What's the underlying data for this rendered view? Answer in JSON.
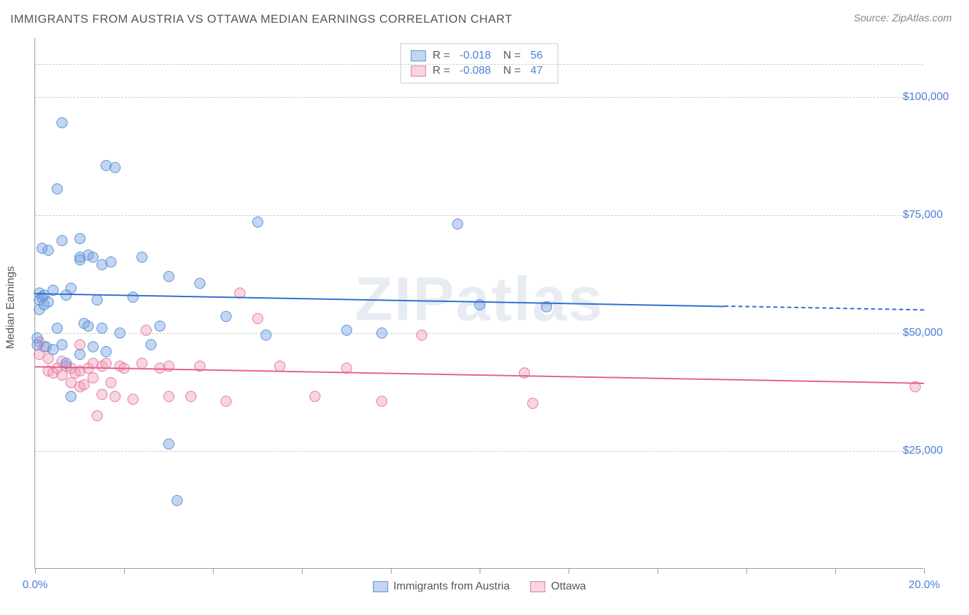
{
  "title": "IMMIGRANTS FROM AUSTRIA VS OTTAWA MEDIAN EARNINGS CORRELATION CHART",
  "source": "Source: ZipAtlas.com",
  "watermark": "ZIPatlas",
  "ylabel": "Median Earnings",
  "chart": {
    "type": "scatter",
    "background_color": "#ffffff",
    "grid_color": "#cccccc",
    "axis_color": "#999999",
    "label_color": "#4a7fd8",
    "title_fontsize": 17,
    "label_fontsize": 16,
    "point_radius": 8,
    "xlim": [
      0,
      20
    ],
    "ylim": [
      0,
      112500
    ],
    "xticks": [
      0,
      2,
      4,
      6,
      8,
      10,
      12,
      14,
      16,
      18,
      20
    ],
    "xtick_labels_visible": {
      "0": "0.0%",
      "20": "20.0%"
    },
    "yticks": [
      25000,
      50000,
      75000,
      100000
    ],
    "ytick_labels": [
      "$25,000",
      "$50,000",
      "$75,000",
      "$100,000"
    ],
    "ygrid_extra_top": 107000
  },
  "series": [
    {
      "name": "Immigrants from Austria",
      "fill_color": "rgba(120,165,225,0.45)",
      "stroke_color": "#5d8fd6",
      "trend_color": "#2d6cd4",
      "R": "-0.018",
      "N": "56",
      "trend": {
        "x1": 0,
        "y1": 58500,
        "x2": 15.5,
        "y2": 55800,
        "dash_x2": 20,
        "dash_y2": 55000
      },
      "points": [
        [
          0.05,
          47500
        ],
        [
          0.05,
          49000
        ],
        [
          0.1,
          57000
        ],
        [
          0.1,
          58500
        ],
        [
          0.1,
          55000
        ],
        [
          0.15,
          68000
        ],
        [
          0.15,
          57500
        ],
        [
          0.2,
          58000
        ],
        [
          0.2,
          56000
        ],
        [
          0.25,
          47000
        ],
        [
          0.3,
          67500
        ],
        [
          0.3,
          56500
        ],
        [
          0.4,
          59000
        ],
        [
          0.4,
          46500
        ],
        [
          0.5,
          80500
        ],
        [
          0.5,
          51000
        ],
        [
          0.6,
          94500
        ],
        [
          0.6,
          69500
        ],
        [
          0.6,
          47500
        ],
        [
          0.7,
          58000
        ],
        [
          0.7,
          43500
        ],
        [
          0.8,
          59500
        ],
        [
          0.8,
          36500
        ],
        [
          1.0,
          70000
        ],
        [
          1.0,
          66000
        ],
        [
          1.0,
          65500
        ],
        [
          1.0,
          45500
        ],
        [
          1.1,
          52000
        ],
        [
          1.2,
          66500
        ],
        [
          1.2,
          51500
        ],
        [
          1.3,
          66000
        ],
        [
          1.3,
          47000
        ],
        [
          1.4,
          57000
        ],
        [
          1.5,
          64500
        ],
        [
          1.5,
          51000
        ],
        [
          1.6,
          85500
        ],
        [
          1.6,
          46000
        ],
        [
          1.7,
          65000
        ],
        [
          1.8,
          85000
        ],
        [
          1.9,
          50000
        ],
        [
          2.2,
          57500
        ],
        [
          2.4,
          66000
        ],
        [
          2.6,
          47500
        ],
        [
          2.8,
          51500
        ],
        [
          3.0,
          62000
        ],
        [
          3.0,
          26500
        ],
        [
          3.2,
          14500
        ],
        [
          3.7,
          60500
        ],
        [
          4.3,
          53500
        ],
        [
          5.0,
          73500
        ],
        [
          5.2,
          49500
        ],
        [
          7.0,
          50500
        ],
        [
          7.8,
          50000
        ],
        [
          9.5,
          73000
        ],
        [
          10.0,
          56000
        ],
        [
          11.5,
          55500
        ]
      ]
    },
    {
      "name": "Ottawa",
      "fill_color": "rgba(240,150,180,0.40)",
      "stroke_color": "#e17b9e",
      "trend_color": "#e85d8f",
      "R": "-0.088",
      "N": "47",
      "trend": {
        "x1": 0,
        "y1": 43000,
        "x2": 20,
        "y2": 39500
      },
      "points": [
        [
          0.1,
          48000
        ],
        [
          0.1,
          45500
        ],
        [
          0.2,
          47000
        ],
        [
          0.3,
          42000
        ],
        [
          0.3,
          44500
        ],
        [
          0.4,
          41500
        ],
        [
          0.5,
          42500
        ],
        [
          0.6,
          41000
        ],
        [
          0.6,
          44000
        ],
        [
          0.7,
          43000
        ],
        [
          0.8,
          39500
        ],
        [
          0.8,
          42500
        ],
        [
          0.9,
          41500
        ],
        [
          1.0,
          47500
        ],
        [
          1.0,
          42000
        ],
        [
          1.0,
          38500
        ],
        [
          1.1,
          39000
        ],
        [
          1.2,
          42500
        ],
        [
          1.3,
          43500
        ],
        [
          1.3,
          40500
        ],
        [
          1.4,
          32500
        ],
        [
          1.5,
          43000
        ],
        [
          1.5,
          37000
        ],
        [
          1.6,
          43500
        ],
        [
          1.7,
          39500
        ],
        [
          1.8,
          36500
        ],
        [
          1.9,
          43000
        ],
        [
          2.0,
          42500
        ],
        [
          2.2,
          36000
        ],
        [
          2.4,
          43500
        ],
        [
          2.5,
          50500
        ],
        [
          2.8,
          42500
        ],
        [
          3.0,
          43000
        ],
        [
          3.0,
          36500
        ],
        [
          3.5,
          36500
        ],
        [
          3.7,
          43000
        ],
        [
          4.3,
          35500
        ],
        [
          4.6,
          58500
        ],
        [
          5.0,
          53000
        ],
        [
          5.5,
          43000
        ],
        [
          6.3,
          36500
        ],
        [
          7.0,
          42500
        ],
        [
          7.8,
          35500
        ],
        [
          8.7,
          49500
        ],
        [
          11.0,
          41500
        ],
        [
          11.2,
          35000
        ],
        [
          19.8,
          38500
        ]
      ]
    }
  ],
  "legend_top_labels": {
    "R": "R =",
    "N": "N ="
  },
  "legend_bottom": [
    {
      "label": "Immigrants from Austria",
      "fill": "rgba(120,165,225,0.45)",
      "stroke": "#5d8fd6"
    },
    {
      "label": "Ottawa",
      "fill": "rgba(240,150,180,0.40)",
      "stroke": "#e17b9e"
    }
  ]
}
